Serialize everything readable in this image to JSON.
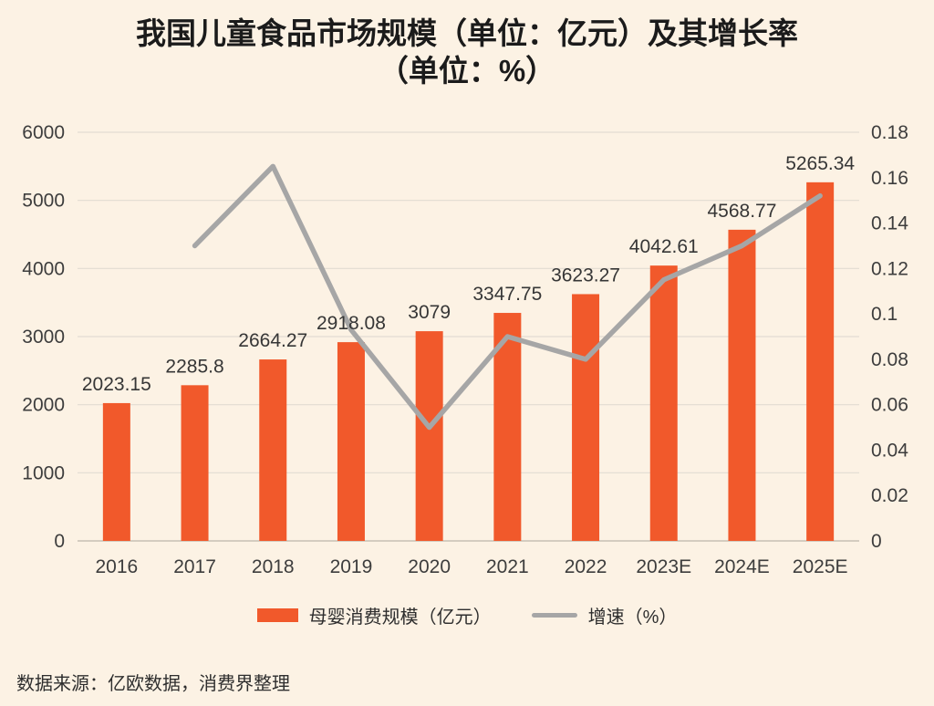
{
  "title": {
    "line1": "我国儿童食品市场规模（单位：亿元）及其增长率",
    "line2": "（单位：%）"
  },
  "source": "数据来源：亿欧数据，消费界整理",
  "colors": {
    "background": "#FCF2E4",
    "bar": "#F1592B",
    "line": "#A6A6A6",
    "grid": "#E2DCD2",
    "axis_line": "#C6BFB4",
    "tick_text": "#3D3D3D",
    "value_label_text": "#363636",
    "title_text": "#1B1B1B"
  },
  "chart_data": {
    "type": "combo-bar-line",
    "title": "我国儿童食品市场规模（单位：亿元）及其增长率（单位：%）",
    "categories": [
      "2016",
      "2017",
      "2018",
      "2019",
      "2020",
      "2021",
      "2022",
      "2023E",
      "2024E",
      "2025E"
    ],
    "series": [
      {
        "name": "母婴消费规模（亿元）",
        "type": "bar",
        "axis": "left",
        "color": "#F1592B",
        "values": [
          2023.15,
          2285.8,
          2664.27,
          2918.08,
          3079,
          3347.75,
          3623.27,
          4042.61,
          4568.77,
          5265.34
        ],
        "labels": [
          "2023.15",
          "2285.8",
          "2664.27",
          "2918.08",
          "3079",
          "3347.75",
          "3623.27",
          "4042.61",
          "4568.77",
          "5265.34"
        ]
      },
      {
        "name": "增速（%）",
        "type": "line",
        "axis": "right",
        "color": "#A6A6A6",
        "values": [
          null,
          0.13,
          0.165,
          0.093,
          0.05,
          0.09,
          0.08,
          0.115,
          0.13,
          0.152
        ]
      }
    ],
    "left_axis": {
      "min": 0,
      "max": 6000,
      "tick_labels": [
        "0",
        "1000",
        "2000",
        "3000",
        "4000",
        "5000",
        "6000"
      ]
    },
    "right_axis": {
      "min": 0,
      "max": 0.18,
      "tick_labels": [
        "0",
        "0.02",
        "0.04",
        "0.06",
        "0.08",
        "0.1",
        "0.12",
        "0.14",
        "0.16",
        "0.18"
      ]
    },
    "legend": {
      "position": "bottom",
      "bar_label": "母婴消费规模（亿元）",
      "line_label": "增速（%）"
    },
    "grid": true
  }
}
